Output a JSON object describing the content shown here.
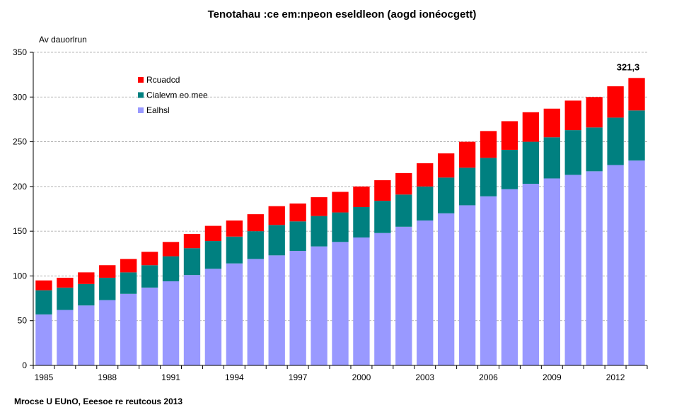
{
  "chart_data": {
    "type": "bar",
    "stacked": true,
    "title": "Tenotahau :ce em:npeon eseldleon (aogd ionéocgett)",
    "ylabel": "Av dauorlrun",
    "xlabel": "",
    "ylim": [
      0,
      350
    ],
    "yticks": [
      0,
      50,
      100,
      150,
      200,
      250,
      300,
      350
    ],
    "grid": true,
    "legend_position": "top-left",
    "categories": [
      "1985",
      "1986",
      "1987",
      "1988",
      "1989",
      "1990",
      "1991",
      "1992",
      "1993",
      "1994",
      "1995",
      "1996",
      "1997",
      "1998",
      "1999",
      "2000",
      "2001",
      "2002",
      "2003",
      "2004",
      "2005",
      "2006",
      "2007",
      "2008",
      "2009",
      "2010",
      "2011",
      "2012",
      "2013"
    ],
    "x_tick_labels": [
      "1985",
      "1988",
      "1991",
      "1994",
      "1997",
      "2000",
      "2003",
      "2006",
      "2009",
      "2012"
    ],
    "series": [
      {
        "name": "Ealhsl",
        "color": "#9999ff",
        "values": [
          57,
          62,
          67,
          73,
          80,
          87,
          94,
          101,
          108,
          114,
          119,
          123,
          128,
          133,
          138,
          143,
          148,
          155,
          162,
          170,
          179,
          189,
          197,
          203,
          209,
          213,
          217,
          224,
          229
        ]
      },
      {
        "name": "Cialevm eo mee",
        "color": "#008080",
        "values": [
          27,
          25,
          24,
          25,
          24,
          25,
          28,
          30,
          31,
          30,
          31,
          34,
          33,
          34,
          33,
          34,
          36,
          36,
          38,
          40,
          42,
          43,
          44,
          47,
          46,
          50,
          49,
          53,
          56
        ]
      },
      {
        "name": "Rcuadcd",
        "color": "#ff0000",
        "values": [
          11,
          11,
          13,
          14,
          15,
          15,
          16,
          16,
          17,
          18,
          19,
          21,
          20,
          21,
          23,
          23,
          23,
          24,
          26,
          27,
          29,
          30,
          32,
          33,
          32,
          33,
          34,
          35,
          36.3
        ]
      }
    ],
    "annotations": [
      {
        "category": "2013",
        "text": "321,3"
      }
    ]
  },
  "source": "Mrocse U EUnO, Eeesoe re reutcous 2013"
}
